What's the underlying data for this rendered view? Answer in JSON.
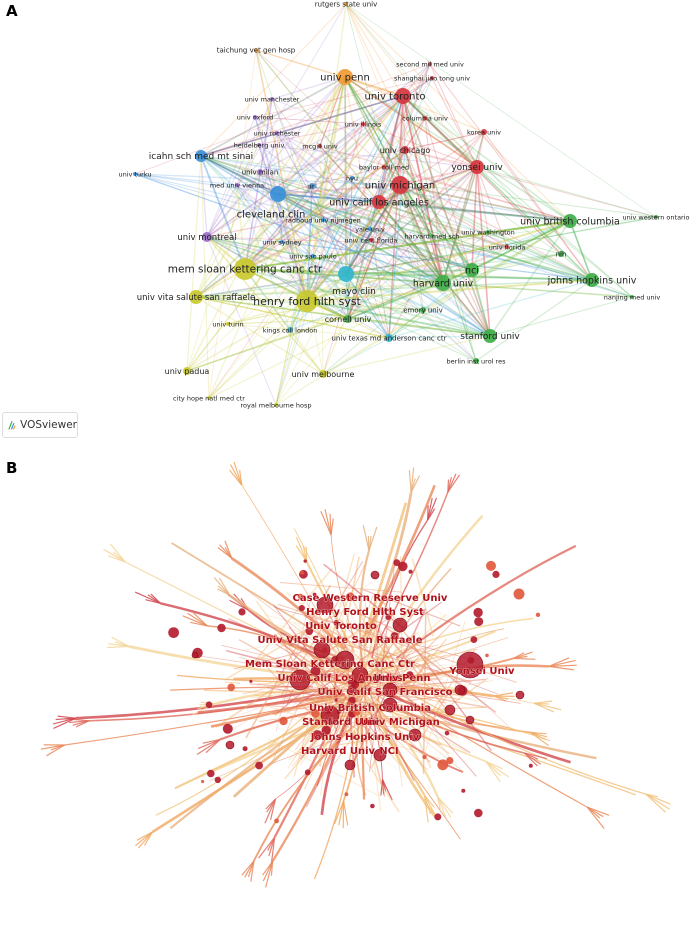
{
  "panels": {
    "a": {
      "letter": "A"
    },
    "b": {
      "letter": "B"
    }
  },
  "logo": {
    "text": "VOSviewer",
    "icon": "vosviewer-logo-icon"
  },
  "colors": {
    "red": "#d6353f",
    "green": "#3fae49",
    "blue": "#3a8fd9",
    "yellow": "#c9c92f",
    "purple": "#9a6cc7",
    "orange": "#f09a33",
    "cyan": "#33b6cc",
    "b_node": "#b31a2b",
    "b_label": "#b0111a"
  },
  "network_a": {
    "nodes": [
      {
        "label": "rutgers state univ",
        "c": "orange",
        "s": 2,
        "f": 7
      },
      {
        "label": "taichung vet gen hosp",
        "c": "orange",
        "s": 2,
        "f": 7
      },
      {
        "label": "univ penn",
        "c": "orange",
        "s": 8,
        "f": 10
      },
      {
        "label": "second mil med univ",
        "c": "red",
        "s": 2,
        "f": 6.5
      },
      {
        "label": "shanghai jiao tong univ",
        "c": "red",
        "s": 2,
        "f": 6.5
      },
      {
        "label": "univ toronto",
        "c": "red",
        "s": 8,
        "f": 10
      },
      {
        "label": "univ manchester",
        "c": "purple",
        "s": 2,
        "f": 6.5
      },
      {
        "label": "univ oxford",
        "c": "purple",
        "s": 2,
        "f": 6.5
      },
      {
        "label": "univ illinois",
        "c": "red",
        "s": 2,
        "f": 6.5
      },
      {
        "label": "columbia univ",
        "c": "red",
        "s": 2,
        "f": 6.5
      },
      {
        "label": "korea univ",
        "c": "red",
        "s": 3,
        "f": 6.5
      },
      {
        "label": "univ rochester",
        "c": "purple",
        "s": 2,
        "f": 6.5
      },
      {
        "label": "heidelberg univ",
        "c": "purple",
        "s": 2,
        "f": 6.5
      },
      {
        "label": "mcgill univ",
        "c": "red",
        "s": 2,
        "f": 6.5
      },
      {
        "label": "univ chicago",
        "c": "red",
        "s": 4,
        "f": 8
      },
      {
        "label": "icahn sch med mt sinai",
        "c": "blue",
        "s": 6,
        "f": 9
      },
      {
        "label": "baylor coll med",
        "c": "red",
        "s": 2,
        "f": 6.5
      },
      {
        "label": "yonsei univ",
        "c": "red",
        "s": 7,
        "f": 9
      },
      {
        "label": "univ turku",
        "c": "blue",
        "s": 2,
        "f": 6.5
      },
      {
        "label": "univ milan",
        "c": "purple",
        "s": 3,
        "f": 7
      },
      {
        "label": "med univ vienna",
        "c": "purple",
        "s": 2,
        "f": 6.5
      },
      {
        "label": "ucl",
        "c": "blue",
        "s": 3,
        "f": 6.5
      },
      {
        "label": "nyu",
        "c": "blue",
        "s": 2,
        "f": 6.5
      },
      {
        "label": "univ michigan",
        "c": "red",
        "s": 9,
        "f": 10
      },
      {
        "label": "univ calif los angeles",
        "c": "red",
        "s": 7,
        "f": 9.5
      },
      {
        "label": "cleveland clin",
        "c": "blue",
        "s": 8,
        "f": 10
      },
      {
        "label": "radboud univ nijmegen",
        "c": "blue",
        "s": 2,
        "f": 6.5
      },
      {
        "label": "yale univ",
        "c": "blue",
        "s": 2,
        "f": 6.5
      },
      {
        "label": "univ british columbia",
        "c": "green",
        "s": 7,
        "f": 9.5
      },
      {
        "label": "univ western ontario",
        "c": "green",
        "s": 2,
        "f": 6.5
      },
      {
        "label": "univ montreal",
        "c": "purple",
        "s": 5,
        "f": 8.5
      },
      {
        "label": "univ sydney",
        "c": "blue",
        "s": 2,
        "f": 6.5
      },
      {
        "label": "univ cent florida",
        "c": "red",
        "s": 2,
        "f": 6.5
      },
      {
        "label": "harvard med sch",
        "c": "green",
        "s": 2,
        "f": 6.5
      },
      {
        "label": "univ washington",
        "c": "green",
        "s": 2,
        "f": 6.5
      },
      {
        "label": "univ florida",
        "c": "red",
        "s": 2,
        "f": 6.5
      },
      {
        "label": "nih",
        "c": "green",
        "s": 3,
        "f": 7
      },
      {
        "label": "univ sao paulo",
        "c": "blue",
        "s": 2,
        "f": 6.5
      },
      {
        "label": "mem sloan kettering canc ctr",
        "c": "yellow",
        "s": 11,
        "f": 10.5
      },
      {
        "label": "mayo clin",
        "c": "cyan",
        "s": 8,
        "f": 9
      },
      {
        "label": "nci",
        "c": "green",
        "s": 7,
        "f": 9.5
      },
      {
        "label": "harvard univ",
        "c": "green",
        "s": 8,
        "f": 9.5
      },
      {
        "label": "johns hopkins univ",
        "c": "green",
        "s": 7,
        "f": 9.5
      },
      {
        "label": "univ vita salute san raffaele",
        "c": "yellow",
        "s": 7,
        "f": 8.5
      },
      {
        "label": "henry ford hlth syst",
        "c": "yellow",
        "s": 11,
        "f": 11
      },
      {
        "label": "nanjing med univ",
        "c": "green",
        "s": 2,
        "f": 6.5
      },
      {
        "label": "emory univ",
        "c": "green",
        "s": 3,
        "f": 7
      },
      {
        "label": "univ turin",
        "c": "yellow",
        "s": 2,
        "f": 6.5
      },
      {
        "label": "kings coll london",
        "c": "cyan",
        "s": 3,
        "f": 6.5
      },
      {
        "label": "cornell univ",
        "c": "green",
        "s": 4,
        "f": 8
      },
      {
        "label": "univ texas md anderson canc ctr",
        "c": "cyan",
        "s": 4,
        "f": 7
      },
      {
        "label": "stanford univ",
        "c": "green",
        "s": 7,
        "f": 9
      },
      {
        "label": "berlin inst urol res",
        "c": "green",
        "s": 3,
        "f": 6.5
      },
      {
        "label": "univ padua",
        "c": "yellow",
        "s": 4,
        "f": 8
      },
      {
        "label": "univ melbourne",
        "c": "yellow",
        "s": 4,
        "f": 8
      },
      {
        "label": "city hope natl med ctr",
        "c": "yellow",
        "s": 2,
        "f": 6.5
      },
      {
        "label": "royal melbourne hosp",
        "c": "yellow",
        "s": 2,
        "f": 6.5
      }
    ]
  },
  "network_b": {
    "labels": [
      "Case Western Reserve Univ",
      "Henry Ford Hlth Syst",
      "Univ Toronto",
      "Univ Vita Salute San Raffaele",
      "Mem Sloan Kettering Canc Ctr",
      "Univ Calif Los Angeles",
      "Univ Penn",
      "Univ Calif San Francisco",
      "Yonsei Univ",
      "Univ British Columbia",
      "Stanford Univ",
      "Univ Michigan",
      "Johns Hopkins Univ",
      "Harvard Univ",
      "NCI"
    ]
  }
}
